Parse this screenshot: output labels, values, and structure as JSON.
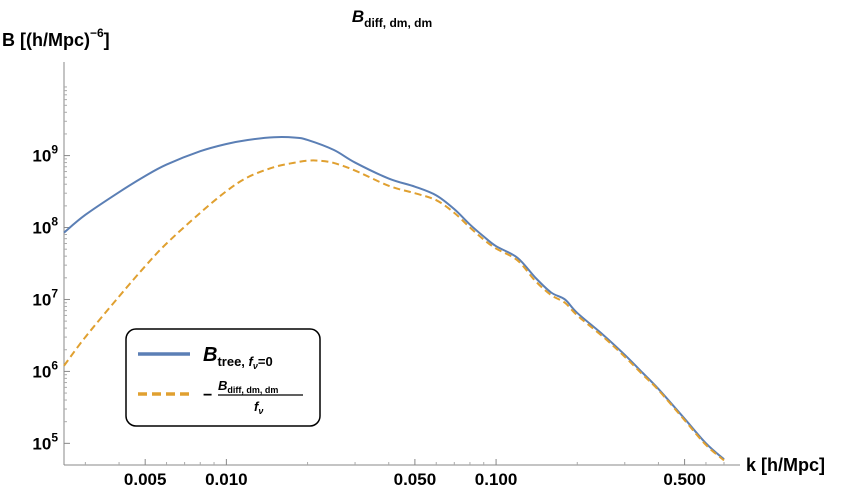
{
  "chart_data": {
    "type": "line",
    "title": {
      "main": "B",
      "sub": "diff, dm, dm"
    },
    "xlabel": "k [h/Mpc]",
    "ylabel": {
      "base": "B [(h/Mpc)",
      "exp": "−6",
      "close": "]"
    },
    "xscale": "log",
    "yscale": "log",
    "xlim": [
      0.0025,
      0.7
    ],
    "ylim": [
      50000,
      20000000000
    ],
    "x_ticks": [
      0.005,
      0.01,
      0.05,
      0.1,
      0.5
    ],
    "x_tick_labels": [
      "0.005",
      "0.010",
      "0.050",
      "0.100",
      "0.500"
    ],
    "y_ticks": [
      100000,
      1000000,
      10000000,
      100000000,
      1000000000
    ],
    "y_tick_labels": [
      {
        "base": "10",
        "exp": "5"
      },
      {
        "base": "10",
        "exp": "6"
      },
      {
        "base": "10",
        "exp": "7"
      },
      {
        "base": "10",
        "exp": "8"
      },
      {
        "base": "10",
        "exp": "9"
      }
    ],
    "grid": false,
    "legend_position": "bottom-left",
    "legend": [
      {
        "main": "B",
        "sub": "tree, ",
        "sub_italic": "f",
        "sub_nu": "ν",
        "sub_tail": "=0",
        "color": "#5b7fb5",
        "dash": "solid"
      },
      {
        "prefix": "−",
        "num_main": "B",
        "num_sub": "diff, dm, dm",
        "den": "f",
        "den_sub": "ν",
        "color": "#e0a030",
        "dash": "dashed"
      }
    ],
    "series": [
      {
        "color": "#5b7fb5",
        "dash": "solid",
        "x": [
          0.0025,
          0.003,
          0.004,
          0.005,
          0.006,
          0.008,
          0.01,
          0.012,
          0.015,
          0.018,
          0.02,
          0.025,
          0.03,
          0.04,
          0.05,
          0.06,
          0.07,
          0.08,
          0.09,
          0.1,
          0.12,
          0.14,
          0.16,
          0.18,
          0.2,
          0.25,
          0.3,
          0.35,
          0.4,
          0.5,
          0.6,
          0.7
        ],
        "y": [
          85000000.0,
          150000000.0,
          310000000.0,
          520000000.0,
          750000000.0,
          1150000000.0,
          1450000000.0,
          1650000000.0,
          1800000000.0,
          1780000000.0,
          1650000000.0,
          1200000000.0,
          800000000.0,
          480000000.0,
          370000000.0,
          280000000.0,
          180000000.0,
          110000000.0,
          75000000.0,
          55000000.0,
          38000000.0,
          20000000.0,
          12500000.0,
          10000000.0,
          6500000.0,
          3200000.0,
          1700000.0,
          950000.0,
          570000.0,
          220000.0,
          100000.0,
          60000.0
        ]
      },
      {
        "color": "#e0a030",
        "dash": "dashed",
        "x": [
          0.0025,
          0.003,
          0.004,
          0.005,
          0.006,
          0.008,
          0.01,
          0.012,
          0.015,
          0.018,
          0.02,
          0.022,
          0.025,
          0.03,
          0.04,
          0.05,
          0.06,
          0.07,
          0.08,
          0.09,
          0.1,
          0.12,
          0.14,
          0.16,
          0.18,
          0.2,
          0.25,
          0.3,
          0.35,
          0.4,
          0.5,
          0.6,
          0.7
        ],
        "y": [
          1200000.0,
          3000000.0,
          11000000.0,
          29000000.0,
          60000000.0,
          160000000.0,
          320000000.0,
          500000000.0,
          690000000.0,
          800000000.0,
          850000000.0,
          850000000.0,
          790000000.0,
          620000000.0,
          380000000.0,
          300000000.0,
          240000000.0,
          160000000.0,
          100000000.0,
          68000000.0,
          51000000.0,
          35000000.0,
          18000000.0,
          11500000.0,
          9000000.0,
          6000000.0,
          3000000.0,
          1600000.0,
          900000.0,
          550000.0,
          210000.0,
          95000.0,
          58000.0
        ]
      }
    ]
  }
}
